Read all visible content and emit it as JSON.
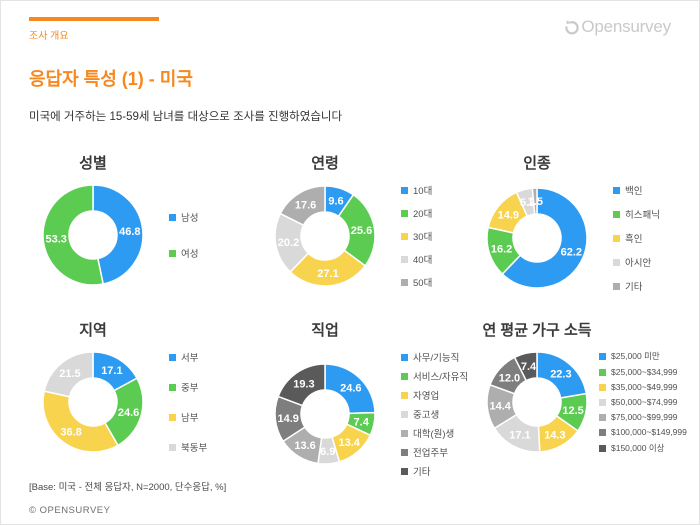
{
  "page": {
    "kicker": "조사 개요",
    "logo_text": "Opensurvey",
    "title": "응답자 특성 (1) - 미국",
    "subtitle": "미국에 거주하는 15-59세 남녀를 대상으로 조사를 진행하였습니다",
    "base_note": "[Base: 미국 - 전체 응답자, N=2000, 단수응답, %]",
    "copyright": "© OPENSURVEY"
  },
  "colors": {
    "orange": "#F6881E",
    "blue": "#2E9BF2",
    "green": "#5CCB52",
    "yellow": "#F8D44E",
    "gray1": "#D9D9D9",
    "gray2": "#AEAEAE",
    "gray3": "#7E7E7E",
    "gray4": "#5A5A5A",
    "logo_gray": "#C9C9C9"
  },
  "chart_data": [
    {
      "type": "pie",
      "title": "성별",
      "legend_position": "right",
      "legend_gap": 22,
      "slices": [
        {
          "label": "남성",
          "value": 46.8,
          "display": "46.8",
          "color": "blue"
        },
        {
          "label": "여성",
          "value": 53.3,
          "display": "53.3",
          "color": "green"
        }
      ]
    },
    {
      "type": "pie",
      "title": "연령",
      "legend_position": "right",
      "legend_gap": 9,
      "slices": [
        {
          "label": "10대",
          "value": 9.6,
          "display": "9.6",
          "color": "blue"
        },
        {
          "label": "20대",
          "value": 25.6,
          "display": "25.6",
          "color": "green"
        },
        {
          "label": "30대",
          "value": 27.1,
          "display": "27.1",
          "color": "yellow"
        },
        {
          "label": "40대",
          "value": 20.2,
          "display": "20.2",
          "color": "gray1"
        },
        {
          "label": "50대",
          "value": 17.6,
          "display": "17.6",
          "color": "gray2"
        }
      ]
    },
    {
      "type": "pie",
      "title": "인종",
      "legend_position": "right",
      "legend_gap": 10,
      "slices": [
        {
          "label": "백인",
          "value": 62.2,
          "display": "62.2",
          "color": "blue"
        },
        {
          "label": "히스패닉",
          "value": 16.2,
          "display": "16.2",
          "color": "green"
        },
        {
          "label": "흑인",
          "value": 14.9,
          "display": "14.9",
          "color": "yellow"
        },
        {
          "label": "아시안",
          "value": 5.2,
          "display": "5.2",
          "color": "gray1"
        },
        {
          "label": "기타",
          "value": 1.5,
          "display": "1.5",
          "color": "gray2"
        }
      ]
    },
    {
      "type": "pie",
      "title": "지역",
      "legend_position": "right",
      "legend_gap": 16,
      "slices": [
        {
          "label": "서부",
          "value": 17.1,
          "display": "17.1",
          "color": "blue"
        },
        {
          "label": "중부",
          "value": 24.6,
          "display": "24.6",
          "color": "green"
        },
        {
          "label": "남부",
          "value": 36.8,
          "display": "36.8",
          "color": "yellow"
        },
        {
          "label": "북동부",
          "value": 21.5,
          "display": "21.5",
          "color": "gray1"
        }
      ]
    },
    {
      "type": "pie",
      "title": "직업",
      "legend_position": "right",
      "legend_gap": 5,
      "slices": [
        {
          "label": "사무/기능직",
          "value": 24.6,
          "display": "24.6",
          "color": "blue"
        },
        {
          "label": "서비스/자유직",
          "value": 7.4,
          "display": "7.4",
          "color": "green"
        },
        {
          "label": "자영업",
          "value": 13.4,
          "display": "13.4",
          "color": "yellow"
        },
        {
          "label": "중고생",
          "value": 6.9,
          "display": "6.9",
          "color": "gray1"
        },
        {
          "label": "대학(원)생",
          "value": 13.6,
          "display": "13.6",
          "color": "gray2"
        },
        {
          "label": "전업주부",
          "value": 14.9,
          "display": "14.9",
          "color": "gray3"
        },
        {
          "label": "기타",
          "value": 19.3,
          "display": "19.3",
          "color": "gray4"
        }
      ]
    },
    {
      "type": "pie",
      "title": "연 평균 가구 소득",
      "legend_position": "right",
      "legend_gap": 5,
      "slices": [
        {
          "label": "$25,000 미만",
          "value": 22.3,
          "display": "22.3",
          "color": "blue"
        },
        {
          "label": "$25,000~$34,999",
          "value": 12.5,
          "display": "12.5",
          "color": "green"
        },
        {
          "label": "$35,000~$49,999",
          "value": 14.3,
          "display": "14.3",
          "color": "yellow"
        },
        {
          "label": "$50,000~$74,999",
          "value": 17.1,
          "display": "17.1",
          "color": "gray1"
        },
        {
          "label": "$75,000~$99,999",
          "value": 14.4,
          "display": "14.4",
          "color": "gray2"
        },
        {
          "label": "$100,000~$149,999",
          "value": 12.0,
          "display": "12.0",
          "color": "gray3"
        },
        {
          "label": "$150,000 이상",
          "value": 7.4,
          "display": "7.4",
          "color": "gray4"
        }
      ]
    }
  ]
}
